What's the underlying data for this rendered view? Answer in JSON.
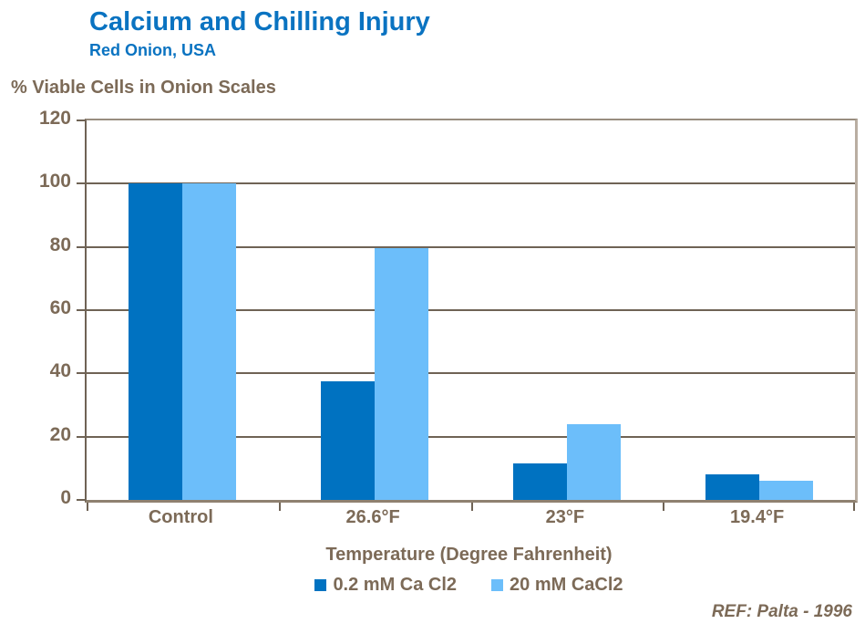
{
  "header": {
    "title": "Calcium and Chilling Injury",
    "subtitle": "Red Onion, USA"
  },
  "chart_data": {
    "type": "bar",
    "title": "Calcium and Chilling Injury",
    "subtitle": "Red Onion, USA",
    "categories": [
      "Control",
      "26.6°F",
      "23°F",
      "19.4°F"
    ],
    "series": [
      {
        "name": "0.2 mM Ca Cl2",
        "color": "#0072c1",
        "values": [
          100,
          37.5,
          11.5,
          8
        ]
      },
      {
        "name": "20 mM CaCl2",
        "color": "#6cbefa",
        "values": [
          100,
          79.5,
          24,
          6
        ]
      }
    ],
    "ylabel": "% Viable Cells in Onion Scales",
    "xlabel": "Temperature (Degree Fahrenheit)",
    "ylim": [
      0,
      120
    ],
    "ytick_step": 20,
    "grid": true,
    "legend_position": "bottom"
  },
  "footer": {
    "reference": "REF: Palta - 1996"
  },
  "colors": {
    "title_blue": "#0a73c1",
    "text_brown": "#7c6a57",
    "axis_brown": "#6f6355",
    "series_dark": "#0072c1",
    "series_light": "#6cbefa"
  }
}
